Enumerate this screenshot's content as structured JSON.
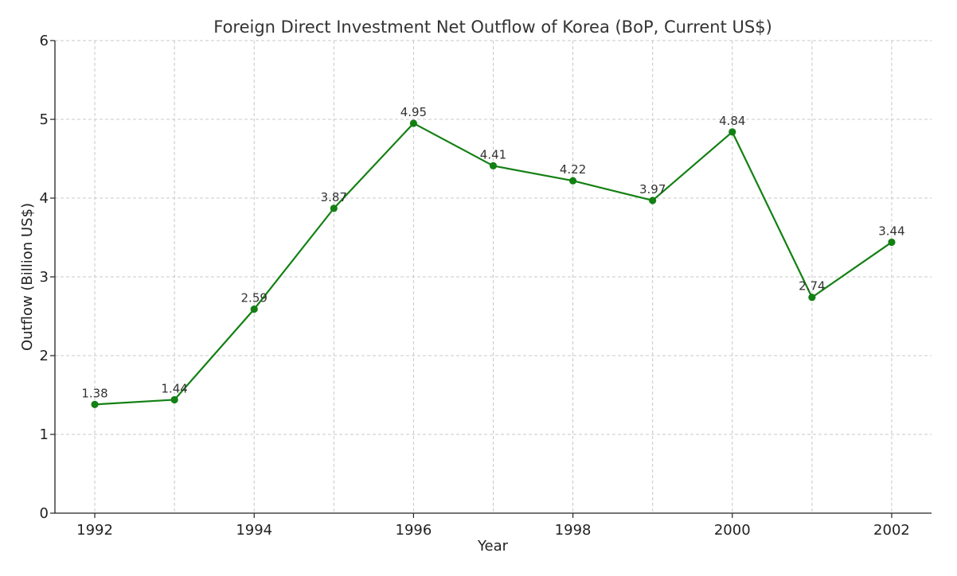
{
  "chart_data": {
    "type": "line",
    "title": "Foreign Direct Investment Net Outflow of Korea (BoP, Current US$)",
    "xlabel": "Year",
    "ylabel": "Outflow (Billion US$)",
    "x": [
      1992,
      1993,
      1994,
      1995,
      1996,
      1997,
      1998,
      1999,
      2000,
      2001,
      2002
    ],
    "values": [
      1.38,
      1.44,
      2.59,
      3.87,
      4.95,
      4.41,
      4.22,
      3.97,
      4.84,
      2.74,
      3.44
    ],
    "data_labels": [
      "1.38",
      "1.44",
      "2.59",
      "3.87",
      "4.95",
      "4.41",
      "4.22",
      "3.97",
      "4.84",
      "2.74",
      "3.44"
    ],
    "x_ticks": [
      "1992",
      "1994",
      "1996",
      "1998",
      "2000",
      "2002"
    ],
    "y_ticks": [
      "0",
      "1",
      "2",
      "3",
      "4",
      "5",
      "6"
    ],
    "xlim": [
      1991.5,
      2002.5
    ],
    "ylim": [
      0,
      6
    ],
    "grid": true,
    "line_color": "#138013",
    "marker": "circle"
  }
}
